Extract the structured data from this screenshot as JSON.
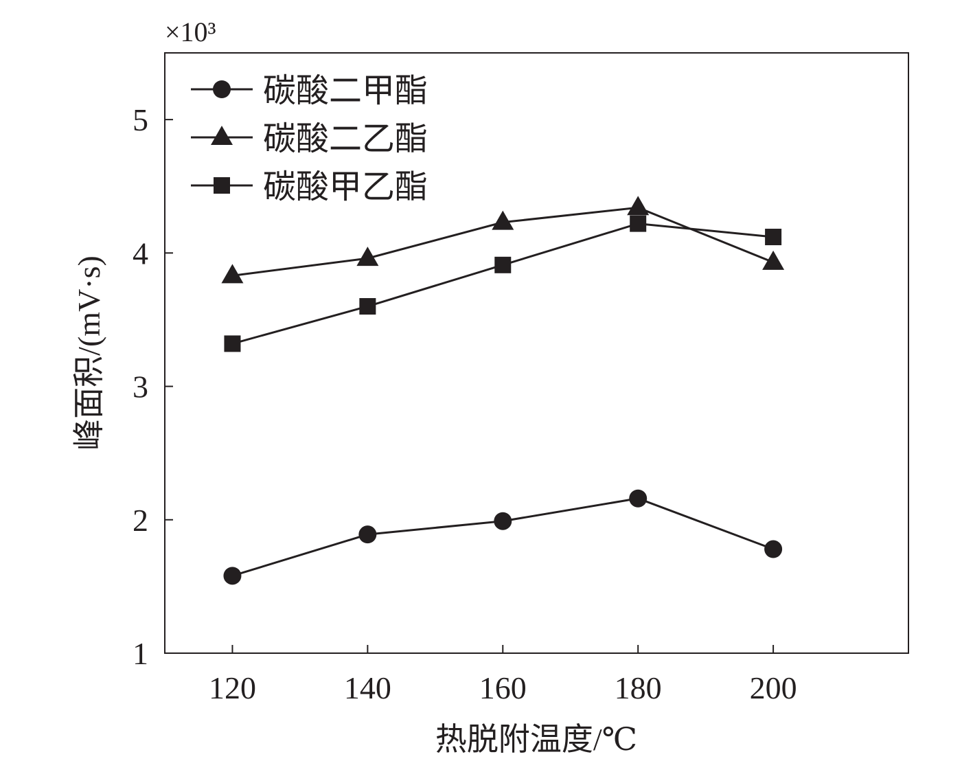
{
  "chart_data": {
    "type": "line",
    "title": "",
    "xlabel": "热脱附温度/℃",
    "ylabel": "峰面积/(mV·s)",
    "y_multiplier": "×10³",
    "x": [
      120,
      140,
      160,
      180,
      200
    ],
    "xlim": [
      110,
      220
    ],
    "ylim": [
      1,
      5.5
    ],
    "xticks": [
      120,
      140,
      160,
      180,
      200
    ],
    "yticks": [
      1,
      2,
      3,
      4,
      5
    ],
    "grid": false,
    "legend_position": "top-left",
    "color": "#231f20",
    "series": [
      {
        "name": "碳酸二甲酯",
        "marker": "circle",
        "values": [
          1.58,
          1.89,
          1.99,
          2.16,
          1.78
        ]
      },
      {
        "name": "碳酸二乙酯",
        "marker": "triangle",
        "values": [
          3.83,
          3.96,
          4.23,
          4.34,
          3.93
        ]
      },
      {
        "name": "碳酸甲乙酯",
        "marker": "square",
        "values": [
          3.32,
          3.6,
          3.91,
          4.22,
          4.12
        ]
      }
    ]
  }
}
